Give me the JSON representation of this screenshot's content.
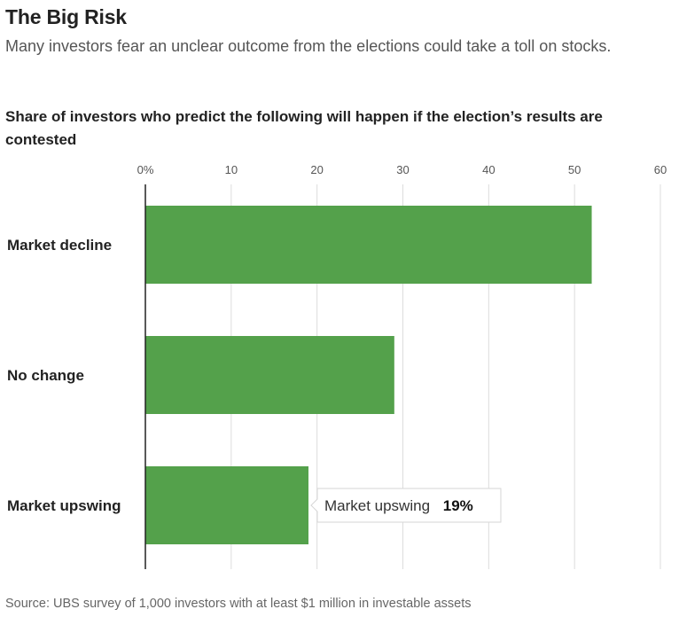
{
  "header": {
    "title": "The Big Risk",
    "subtitle": "Many investors fear an unclear outcome from the elections could take a toll on stocks."
  },
  "chart_data": {
    "type": "bar",
    "orientation": "horizontal",
    "title": "Share of investors who predict the following will happen if the election’s results are contested",
    "categories": [
      "Market decline",
      "No change",
      "Market upswing"
    ],
    "values": [
      52,
      29,
      19
    ],
    "xlim": [
      0,
      60
    ],
    "xticks": [
      0,
      10,
      20,
      30,
      40,
      50,
      60
    ],
    "xtick_labels": [
      "0%",
      "10",
      "20",
      "30",
      "40",
      "50",
      "60"
    ],
    "grid": true,
    "bar_color": "#54a14b",
    "tooltip": {
      "label": "Market upswing",
      "value": "19%"
    }
  },
  "footer": {
    "source": "Source: UBS survey of 1,000 investors with at least $1 million in investable assets"
  }
}
